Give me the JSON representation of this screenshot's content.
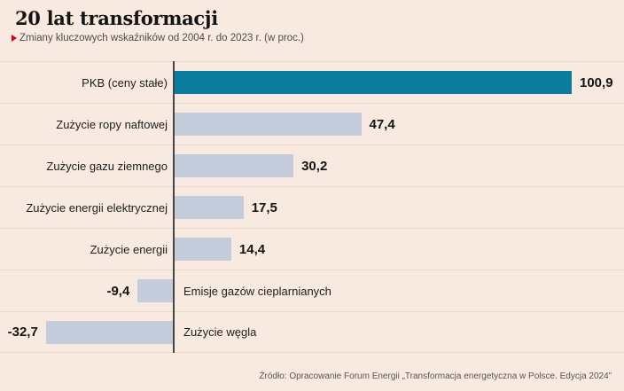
{
  "header": {
    "title": "20 lat transformacji",
    "subtitle": "Zmiany kluczowych wskaźników od 2004 r. do 2023 r. (w proc.)",
    "subtitle_marker_icon": "red-triangle-right"
  },
  "source": "Źródło: Opracowanie Forum Energii „Transformacja energetyczna w Polsce. Edycja 2024”",
  "colors": {
    "background": "#f9eae1",
    "bar_primary": "#0c7d9e",
    "bar_secondary": "#c4cbdb",
    "accent_red": "#e00016",
    "separator": "#ecd9ce",
    "axis": "#464646"
  },
  "chart_data": {
    "type": "bar",
    "orientation": "horizontal",
    "title": "20 lat transformacji",
    "subtitle": "Zmiany kluczowych wskaźników od 2004 r. do 2023 r. (w proc.)",
    "unit": "proc.",
    "categories": [
      "PKB (ceny stałe)",
      "Zużycie ropy naftowej",
      "Zużycie gazu ziemnego",
      "Zużycie energii elektrycznej",
      "Zużycie energii",
      "Emisje gazów cieplarnianych",
      "Zużycie węgla"
    ],
    "values": [
      100.9,
      47.4,
      30.2,
      17.5,
      14.4,
      -9.4,
      -32.7
    ],
    "value_labels": [
      "100,9",
      "47,4",
      "30,2",
      "17,5",
      "14,4",
      "-9,4",
      "-32,7"
    ],
    "xlim": [
      -35,
      105
    ],
    "grid": false,
    "legend": false,
    "highlight_index": 0,
    "zero_axis": true
  }
}
